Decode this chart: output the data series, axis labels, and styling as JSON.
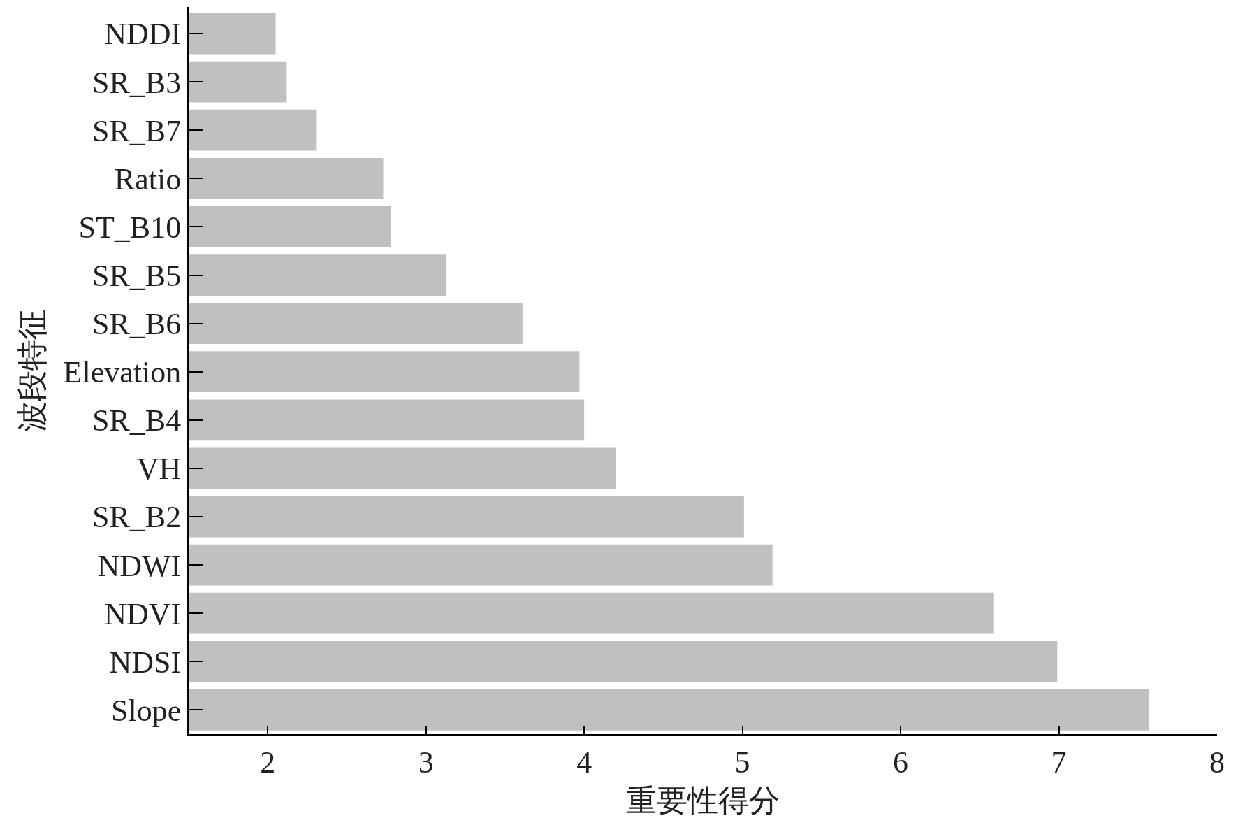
{
  "chart_data": {
    "type": "bar",
    "orientation": "horizontal",
    "xlabel": "重要性得分",
    "ylabel": "波段特征",
    "categories": [
      "NDDI",
      "SR_B3",
      "SR_B7",
      "Ratio",
      "ST_B10",
      "SR_B5",
      "SR_B6",
      "Elevation",
      "SR_B4",
      "VH",
      "SR_B2",
      "NDWI",
      "NDVI",
      "NDSI",
      "Slope"
    ],
    "values": [
      2.05,
      2.12,
      2.31,
      2.73,
      2.78,
      3.13,
      3.61,
      3.97,
      4.0,
      4.2,
      5.01,
      5.19,
      6.59,
      6.99,
      7.57
    ],
    "color": "#c0c0c0",
    "xlim": [
      1.5,
      8
    ],
    "xticks": [
      2,
      3,
      4,
      5,
      6,
      7,
      8
    ]
  }
}
